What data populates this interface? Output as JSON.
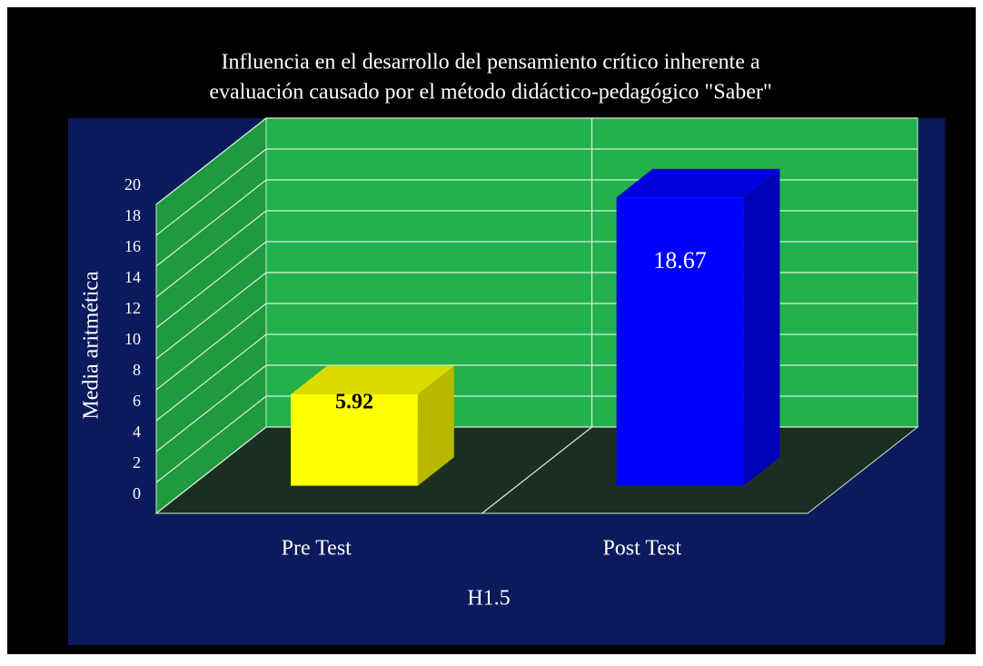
{
  "chart_data": {
    "type": "bar",
    "title": [
      "Influencia en el desarrollo del pensamiento crítico inherente a",
      "evaluación causado por el método didáctico-pedagógico \"Saber\""
    ],
    "y_label": "Media aritmética",
    "x_label": "H1.5",
    "categories": [
      "Pre Test",
      "Post Test"
    ],
    "values": [
      5.92,
      18.67
    ],
    "colors": [
      "#ffff00",
      "#0000ff"
    ],
    "ylim": [
      0,
      20
    ],
    "yticks": [
      0,
      2,
      4,
      6,
      8,
      10,
      12,
      14,
      16,
      18,
      20
    ],
    "grid": true
  }
}
